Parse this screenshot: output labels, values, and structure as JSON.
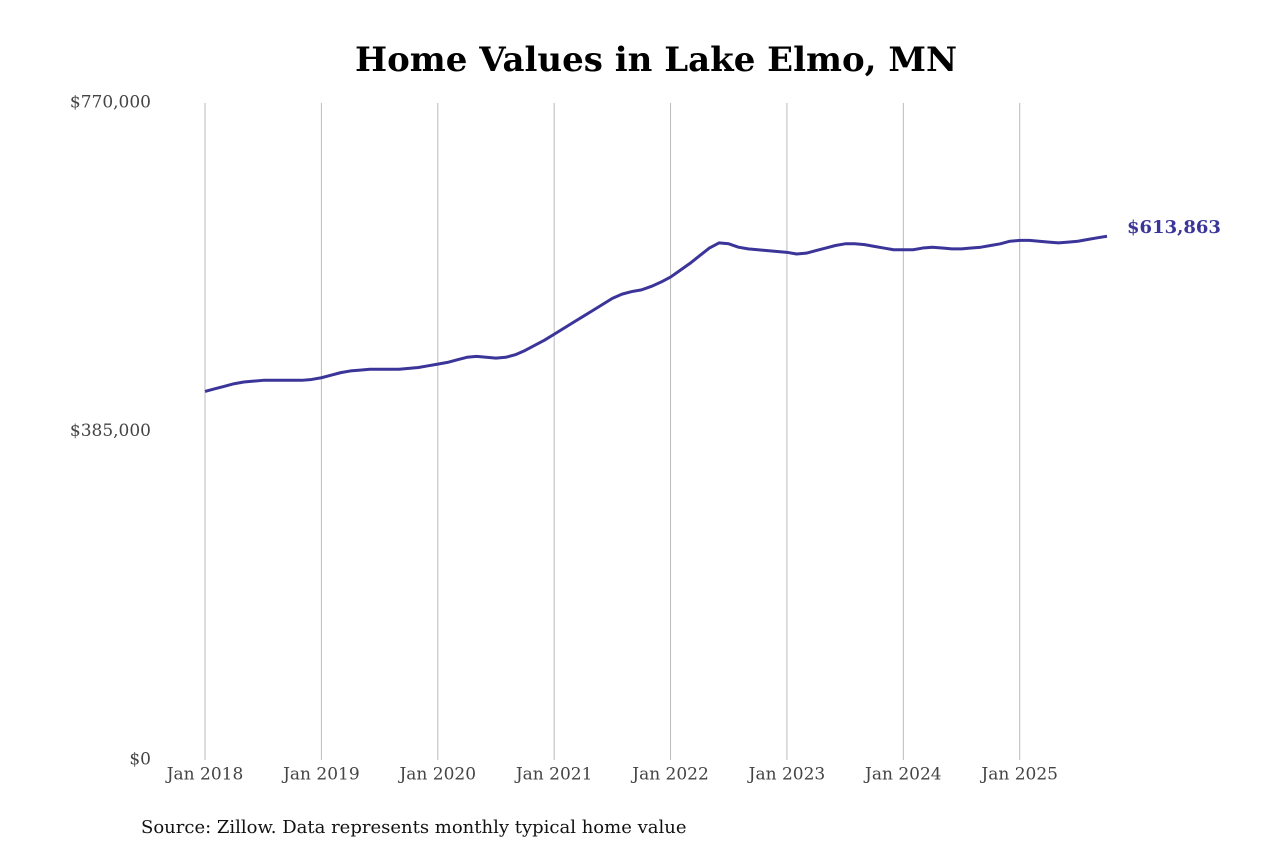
{
  "chart_data": {
    "type": "line",
    "title": "Home Values in Lake Elmo, MN",
    "source": "Source: Zillow. Data represents monthly typical home value",
    "x": [
      "2018-01",
      "2018-02",
      "2018-03",
      "2018-04",
      "2018-05",
      "2018-06",
      "2018-07",
      "2018-08",
      "2018-09",
      "2018-10",
      "2018-11",
      "2018-12",
      "2019-01",
      "2019-02",
      "2019-03",
      "2019-04",
      "2019-05",
      "2019-06",
      "2019-07",
      "2019-08",
      "2019-09",
      "2019-10",
      "2019-11",
      "2019-12",
      "2020-01",
      "2020-02",
      "2020-03",
      "2020-04",
      "2020-05",
      "2020-06",
      "2020-07",
      "2020-08",
      "2020-09",
      "2020-10",
      "2020-11",
      "2020-12",
      "2021-01",
      "2021-02",
      "2021-03",
      "2021-04",
      "2021-05",
      "2021-06",
      "2021-07",
      "2021-08",
      "2021-09",
      "2021-10",
      "2021-11",
      "2021-12",
      "2022-01",
      "2022-02",
      "2022-03",
      "2022-04",
      "2022-05",
      "2022-06",
      "2022-07",
      "2022-08",
      "2022-09",
      "2022-10",
      "2022-11",
      "2022-12",
      "2023-01",
      "2023-02",
      "2023-03",
      "2023-04",
      "2023-05",
      "2023-06",
      "2023-07",
      "2023-08",
      "2023-09",
      "2023-10",
      "2023-11",
      "2023-12",
      "2024-01",
      "2024-02",
      "2024-03",
      "2024-04",
      "2024-05",
      "2024-06",
      "2024-07",
      "2024-08",
      "2024-09",
      "2024-10",
      "2024-11",
      "2024-12",
      "2025-01",
      "2025-02",
      "2025-03",
      "2025-04",
      "2025-05",
      "2025-06",
      "2025-07",
      "2025-08",
      "2025-09",
      "2025-10"
    ],
    "values": [
      432000,
      435000,
      438000,
      441000,
      443000,
      444000,
      445000,
      445000,
      445000,
      445000,
      445000,
      446000,
      448000,
      451000,
      454000,
      456000,
      457000,
      458000,
      458000,
      458000,
      458000,
      459000,
      460000,
      462000,
      464000,
      466000,
      469000,
      472000,
      473000,
      472000,
      471000,
      472000,
      475000,
      480000,
      486000,
      492000,
      499000,
      506000,
      513000,
      520000,
      527000,
      534000,
      541000,
      546000,
      549000,
      551000,
      555000,
      560000,
      566000,
      574000,
      582000,
      591000,
      600000,
      606000,
      605000,
      601000,
      599000,
      598000,
      597000,
      596000,
      595000,
      593000,
      594000,
      597000,
      600000,
      603000,
      605000,
      605000,
      604000,
      602000,
      600000,
      598000,
      598000,
      598000,
      600000,
      601000,
      600000,
      599000,
      599000,
      600000,
      601000,
      603000,
      605000,
      608000,
      609000,
      609000,
      608000,
      607000,
      606000,
      607000,
      608000,
      610000,
      612000,
      613863
    ],
    "value_labels": [
      null,
      null,
      null,
      null,
      null,
      null,
      null,
      null,
      null,
      null,
      null,
      null,
      null,
      null,
      null,
      null,
      null,
      null,
      null,
      null,
      null,
      null,
      null,
      null,
      null,
      null,
      null,
      null,
      null,
      null,
      null,
      null,
      null,
      null,
      null,
      null,
      null,
      null,
      null,
      null,
      null,
      null,
      null,
      null,
      null,
      null,
      null,
      null,
      null,
      null,
      null,
      null,
      null,
      null,
      null,
      null,
      null,
      null,
      null,
      null,
      null,
      null,
      null,
      null,
      null,
      null,
      null,
      null,
      null,
      null,
      null,
      null,
      null,
      null,
      null,
      null,
      null,
      null,
      null,
      null,
      null,
      null,
      null,
      null,
      null,
      null,
      null,
      null,
      null,
      null,
      null,
      null,
      null,
      "$613,863"
    ],
    "color": "#3b3599",
    "xlim": [
      "2018-01",
      "2025-10"
    ],
    "xticks": [
      {
        "value": "2018-01",
        "label": "Jan 2018"
      },
      {
        "value": "2019-01",
        "label": "Jan 2019"
      },
      {
        "value": "2020-01",
        "label": "Jan 2020"
      },
      {
        "value": "2021-01",
        "label": "Jan 2021"
      },
      {
        "value": "2022-01",
        "label": "Jan 2022"
      },
      {
        "value": "2023-01",
        "label": "Jan 2023"
      },
      {
        "value": "2024-01",
        "label": "Jan 2024"
      },
      {
        "value": "2025-01",
        "label": "Jan 2025"
      }
    ],
    "ylim": [
      0,
      770000
    ],
    "yticks": [
      {
        "value": 0,
        "label": "$0"
      },
      {
        "value": 385000,
        "label": "$385,000"
      },
      {
        "value": 770000,
        "label": "$770,000"
      }
    ],
    "grid": "x"
  }
}
